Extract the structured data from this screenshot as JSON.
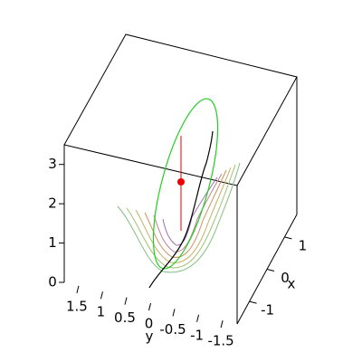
{
  "chart_data": {
    "type": "box3d",
    "z_ticks": [
      0,
      1,
      2,
      3
    ],
    "zlim": [
      0,
      3.5
    ],
    "y_label": "y",
    "y_ticks": [
      1.5,
      1,
      0.5,
      0,
      -0.5,
      -1,
      -1.5
    ],
    "ylim": [
      1.8,
      -1.8
    ],
    "x_label": "x",
    "x_ticks": [
      1,
      0,
      -1
    ],
    "xlim": [
      -1.7,
      1.7
    ]
  }
}
